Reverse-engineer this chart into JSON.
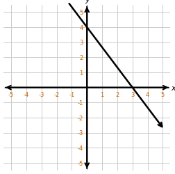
{
  "xlim": [
    -5.5,
    5.5
  ],
  "ylim": [
    -5.5,
    5.5
  ],
  "xticks": [
    -5,
    -4,
    -3,
    -2,
    -1,
    1,
    2,
    3,
    4,
    5
  ],
  "yticks": [
    -5,
    -4,
    -3,
    -2,
    -1,
    1,
    2,
    3,
    4,
    5
  ],
  "xlabel": "x",
  "ylabel": "y",
  "grid_color": "#cccccc",
  "axis_color": "#000000",
  "line_color": "#000000",
  "tick_label_color": "#cc6600",
  "slope": -1.3333333333333333,
  "intercept": 4.0,
  "x_start": -1.25,
  "x_end": 5.1,
  "figsize": [
    2.53,
    2.51
  ],
  "dpi": 100
}
